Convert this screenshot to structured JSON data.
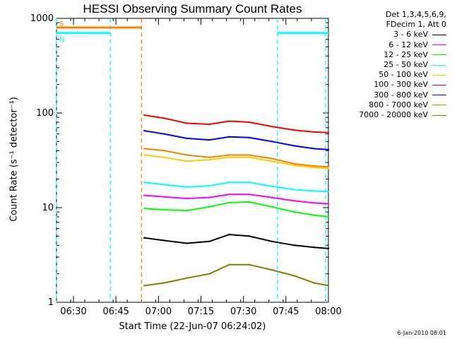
{
  "chart_data": {
    "type": "line",
    "title": "HESSI Observing Summary Count Rates",
    "xlabel": "Start Time (22-Jun-07 06:24:02)",
    "ylabel": "Count Rate (s⁻¹ detector⁻¹)",
    "y_scale": "log",
    "ylim": [
      1,
      1000
    ],
    "xlim": [
      "06:24",
      "08:00"
    ],
    "x_ticks": [
      "06:30",
      "06:45",
      "07:00",
      "07:15",
      "07:30",
      "07:45",
      "08:00"
    ],
    "y_ticks": [
      "1",
      "10",
      "100",
      "1000"
    ],
    "legend_header": [
      "Det 1,3,4,5,6,9,",
      "FDecim 1, Att 0"
    ],
    "legend_position": "outside-right",
    "series": [
      {
        "name": "3 - 6 keV",
        "color": "#000000",
        "x": [
          "06:55",
          "07:02",
          "07:10",
          "07:18",
          "07:25",
          "07:32",
          "07:40",
          "07:48",
          "07:55",
          "08:00"
        ],
        "values": [
          4.8,
          4.5,
          4.2,
          4.4,
          5.2,
          5.0,
          4.4,
          4.0,
          3.8,
          3.7
        ]
      },
      {
        "name": "6 - 12 keV",
        "color": "#ff00ff",
        "x": [
          "06:55",
          "07:02",
          "07:10",
          "07:18",
          "07:25",
          "07:32",
          "07:40",
          "07:48",
          "07:55",
          "08:00"
        ],
        "values": [
          13.5,
          13.0,
          12.5,
          12.8,
          13.8,
          13.8,
          12.8,
          11.8,
          11.2,
          11.0
        ]
      },
      {
        "name": "12 - 25 keV",
        "color": "#00ff00",
        "x": [
          "06:55",
          "07:02",
          "07:10",
          "07:18",
          "07:25",
          "07:32",
          "07:40",
          "07:48",
          "07:55",
          "08:00"
        ],
        "values": [
          9.8,
          9.5,
          9.3,
          10.2,
          11.3,
          11.5,
          10.2,
          9.0,
          8.3,
          8.0
        ]
      },
      {
        "name": "25 - 50 keV",
        "color": "#00ffff",
        "x": [
          "06:55",
          "07:02",
          "07:10",
          "07:18",
          "07:25",
          "07:32",
          "07:40",
          "07:48",
          "07:55",
          "08:00"
        ],
        "values": [
          18.5,
          17.5,
          16.5,
          17.0,
          18.5,
          18.5,
          16.8,
          15.5,
          15.0,
          14.8
        ]
      },
      {
        "name": "50 - 100 keV",
        "color": "#ffcc00",
        "x": [
          "06:55",
          "07:02",
          "07:10",
          "07:18",
          "07:25",
          "07:32",
          "07:40",
          "07:48",
          "07:55",
          "08:00"
        ],
        "values": [
          36,
          34,
          31,
          32,
          34,
          34,
          31,
          28,
          26.5,
          26
        ]
      },
      {
        "name": "100 - 300 keV",
        "color": "#ff0000",
        "x": [
          "06:55",
          "07:02",
          "07:10",
          "07:18",
          "07:25",
          "07:32",
          "07:40",
          "07:48",
          "07:55",
          "08:00"
        ],
        "values": [
          95,
          88,
          78,
          76,
          82,
          80,
          72,
          66,
          63,
          62
        ]
      },
      {
        "name": "300 - 800 keV",
        "color": "#0000ff",
        "x": [
          "06:55",
          "07:02",
          "07:10",
          "07:18",
          "07:25",
          "07:32",
          "07:40",
          "07:48",
          "07:55",
          "08:00"
        ],
        "values": [
          65,
          60,
          54,
          52,
          56,
          55,
          50,
          45,
          42,
          41
        ]
      },
      {
        "name": "800 - 7000 keV",
        "color": "#ff8000",
        "x": [
          "06:55",
          "07:02",
          "07:10",
          "07:18",
          "07:25",
          "07:32",
          "07:40",
          "07:48",
          "07:55",
          "08:00"
        ],
        "values": [
          42,
          40,
          36,
          34,
          36,
          36,
          33,
          29,
          27.5,
          27
        ]
      },
      {
        "name": "7000 - 20000 keV",
        "color": "#808000",
        "x": [
          "06:55",
          "07:02",
          "07:10",
          "07:18",
          "07:25",
          "07:32",
          "07:40",
          "07:48",
          "07:55",
          "08:00"
        ],
        "values": [
          1.5,
          1.6,
          1.8,
          2.0,
          2.5,
          2.5,
          2.2,
          1.9,
          1.6,
          1.5
        ]
      }
    ],
    "flags": [
      {
        "label": "S",
        "color": "#ff8000",
        "y": 800,
        "x_start": "06:24",
        "x_end": "06:54"
      },
      {
        "label": "N",
        "color": "#00ffff",
        "y": 700,
        "x_start": "06:24",
        "x_end": "06:43"
      },
      {
        "label": "",
        "color": "#00ffff",
        "y": 700,
        "x_start": "07:42",
        "x_end": "08:00"
      }
    ],
    "vertical_markers": [
      {
        "x": "06:24",
        "color": "#00ffff"
      },
      {
        "x": "06:43",
        "color": "#00ffff"
      },
      {
        "x": "06:54",
        "color": "#ff8000"
      },
      {
        "x": "07:42",
        "color": "#00ffff"
      },
      {
        "x": "07:59",
        "color": "#00ffff"
      }
    ]
  },
  "footer": "6-Jan-2010 08:01"
}
